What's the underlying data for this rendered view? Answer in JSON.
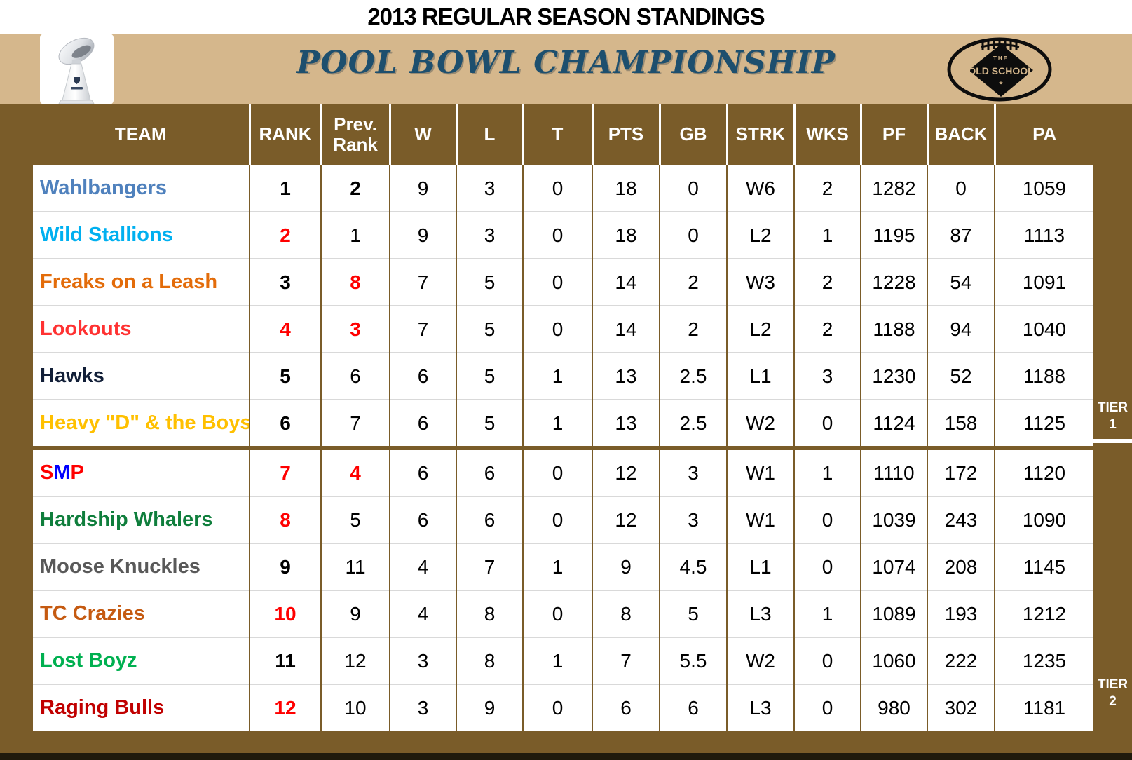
{
  "page": {
    "title": "2013 REGULAR SEASON STANDINGS",
    "banner_title": "POOL BOWL CHAMPIONSHIP"
  },
  "logo": {
    "the": "THE",
    "name": "<OLD SCHOOL>",
    "star": "★"
  },
  "tiers": [
    {
      "label": "TIER",
      "number": "1"
    },
    {
      "label": "TIER",
      "number": "2"
    }
  ],
  "colors": {
    "board_brown": "#7a5c29",
    "banner_tan": "#d5b78c",
    "title_blue": "#1d4f6e",
    "rank_red": "#ff0000",
    "grid_gray": "#d9d9d9"
  },
  "table": {
    "columns": [
      "TEAM",
      "RANK",
      "Prev. Rank",
      "W",
      "L",
      "T",
      "PTS",
      "GB",
      "STRK",
      "WKS",
      "PF",
      "BACK",
      "PA"
    ],
    "rows": [
      {
        "team": [
          {
            "text": "Wahlbangers",
            "color": "#4f81bd"
          }
        ],
        "rank": {
          "text": "1",
          "color": "#000000"
        },
        "prev": {
          "text": "2",
          "color": "#000000",
          "bold": true
        },
        "w": "9",
        "l": "3",
        "t": "0",
        "pts": "18",
        "gb": "0",
        "strk": "W6",
        "wks": "2",
        "pf": "1282",
        "back": "0",
        "pa": "1059",
        "tier_end": false
      },
      {
        "team": [
          {
            "text": "Wild Stallions",
            "color": "#00b0f0"
          }
        ],
        "rank": {
          "text": "2",
          "color": "#ff0000"
        },
        "prev": {
          "text": "1",
          "color": "#000000",
          "bold": false
        },
        "w": "9",
        "l": "3",
        "t": "0",
        "pts": "18",
        "gb": "0",
        "strk": "L2",
        "wks": "1",
        "pf": "1195",
        "back": "87",
        "pa": "1113",
        "tier_end": false
      },
      {
        "team": [
          {
            "text": "Freaks on a Leash",
            "color": "#e36c0a"
          }
        ],
        "rank": {
          "text": "3",
          "color": "#000000"
        },
        "prev": {
          "text": "8",
          "color": "#ff0000",
          "bold": true
        },
        "w": "7",
        "l": "5",
        "t": "0",
        "pts": "14",
        "gb": "2",
        "strk": "W3",
        "wks": "2",
        "pf": "1228",
        "back": "54",
        "pa": "1091",
        "tier_end": false
      },
      {
        "team": [
          {
            "text": "Lookouts",
            "color": "#ff3232"
          }
        ],
        "rank": {
          "text": "4",
          "color": "#ff0000"
        },
        "prev": {
          "text": "3",
          "color": "#ff0000",
          "bold": true
        },
        "w": "7",
        "l": "5",
        "t": "0",
        "pts": "14",
        "gb": "2",
        "strk": "L2",
        "wks": "2",
        "pf": "1188",
        "back": "94",
        "pa": "1040",
        "tier_end": false
      },
      {
        "team": [
          {
            "text": "Hawks",
            "color": "#121f38"
          }
        ],
        "rank": {
          "text": "5",
          "color": "#000000"
        },
        "prev": {
          "text": "6",
          "color": "#000000",
          "bold": false
        },
        "w": "6",
        "l": "5",
        "t": "1",
        "pts": "13",
        "gb": "2.5",
        "strk": "L1",
        "wks": "3",
        "pf": "1230",
        "back": "52",
        "pa": "1188",
        "tier_end": false
      },
      {
        "team": [
          {
            "text": "Heavy \"D\" & the Boys",
            "color": "#ffc000"
          }
        ],
        "rank": {
          "text": "6",
          "color": "#000000"
        },
        "prev": {
          "text": "7",
          "color": "#000000",
          "bold": false
        },
        "w": "6",
        "l": "5",
        "t": "1",
        "pts": "13",
        "gb": "2.5",
        "strk": "W2",
        "wks": "0",
        "pf": "1124",
        "back": "158",
        "pa": "1125",
        "tier_end": true
      },
      {
        "team": [
          {
            "text": "S",
            "color": "#ff0000"
          },
          {
            "text": "M",
            "color": "#0000ff"
          },
          {
            "text": "P",
            "color": "#ff0000"
          }
        ],
        "rank": {
          "text": "7",
          "color": "#ff0000"
        },
        "prev": {
          "text": "4",
          "color": "#ff0000",
          "bold": true
        },
        "w": "6",
        "l": "6",
        "t": "0",
        "pts": "12",
        "gb": "3",
        "strk": "W1",
        "wks": "1",
        "pf": "1110",
        "back": "172",
        "pa": "1120",
        "tier_end": false
      },
      {
        "team": [
          {
            "text": "Hardship Whalers",
            "color": "#0f7e3c"
          }
        ],
        "rank": {
          "text": "8",
          "color": "#ff0000"
        },
        "prev": {
          "text": "5",
          "color": "#000000",
          "bold": false
        },
        "w": "6",
        "l": "6",
        "t": "0",
        "pts": "12",
        "gb": "3",
        "strk": "W1",
        "wks": "0",
        "pf": "1039",
        "back": "243",
        "pa": "1090",
        "tier_end": false
      },
      {
        "team": [
          {
            "text": "Moose Knuckles",
            "color": "#595959"
          }
        ],
        "rank": {
          "text": "9",
          "color": "#000000"
        },
        "prev": {
          "text": "11",
          "color": "#000000",
          "bold": false
        },
        "w": "4",
        "l": "7",
        "t": "1",
        "pts": "9",
        "gb": "4.5",
        "strk": "L1",
        "wks": "0",
        "pf": "1074",
        "back": "208",
        "pa": "1145",
        "tier_end": false
      },
      {
        "team": [
          {
            "text": "TC Crazies",
            "color": "#c55a11"
          }
        ],
        "rank": {
          "text": "10",
          "color": "#ff0000"
        },
        "prev": {
          "text": "9",
          "color": "#000000",
          "bold": false
        },
        "w": "4",
        "l": "8",
        "t": "0",
        "pts": "8",
        "gb": "5",
        "strk": "L3",
        "wks": "1",
        "pf": "1089",
        "back": "193",
        "pa": "1212",
        "tier_end": false
      },
      {
        "team": [
          {
            "text": "Lost Boyz",
            "color": "#00b050"
          }
        ],
        "rank": {
          "text": "11",
          "color": "#000000"
        },
        "prev": {
          "text": "12",
          "color": "#000000",
          "bold": false
        },
        "w": "3",
        "l": "8",
        "t": "1",
        "pts": "7",
        "gb": "5.5",
        "strk": "W2",
        "wks": "0",
        "pf": "1060",
        "back": "222",
        "pa": "1235",
        "tier_end": false
      },
      {
        "team": [
          {
            "text": "Raging Bulls",
            "color": "#c00000"
          }
        ],
        "rank": {
          "text": "12",
          "color": "#ff0000"
        },
        "prev": {
          "text": "10",
          "color": "#000000",
          "bold": false
        },
        "w": "3",
        "l": "9",
        "t": "0",
        "pts": "6",
        "gb": "6",
        "strk": "L3",
        "wks": "0",
        "pf": "980",
        "back": "302",
        "pa": "1181",
        "tier_end": true
      }
    ]
  }
}
